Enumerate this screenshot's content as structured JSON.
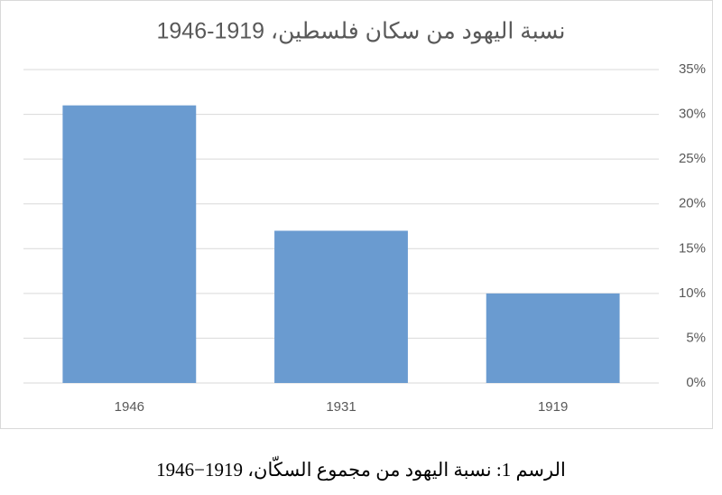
{
  "chart_data": {
    "type": "bar",
    "title": "نسبة اليهود من سكان فلسطين، 1919-1946",
    "categories": [
      "1946",
      "1931",
      "1919"
    ],
    "values": [
      31,
      17,
      10
    ],
    "color": "#6a9bd0",
    "ylim": [
      0,
      35
    ],
    "yticks": [
      {
        "value": 0,
        "label": "0%"
      },
      {
        "value": 5,
        "label": "5%"
      },
      {
        "value": 10,
        "label": "10%"
      },
      {
        "value": 15,
        "label": "15%"
      },
      {
        "value": 20,
        "label": "20%"
      },
      {
        "value": 25,
        "label": "25%"
      },
      {
        "value": 30,
        "label": "30%"
      },
      {
        "value": 35,
        "label": "35%"
      }
    ],
    "grid": true,
    "caption": "الرسم 1: نسبة اليهود من مجموع السكّان، 1919−1946"
  }
}
